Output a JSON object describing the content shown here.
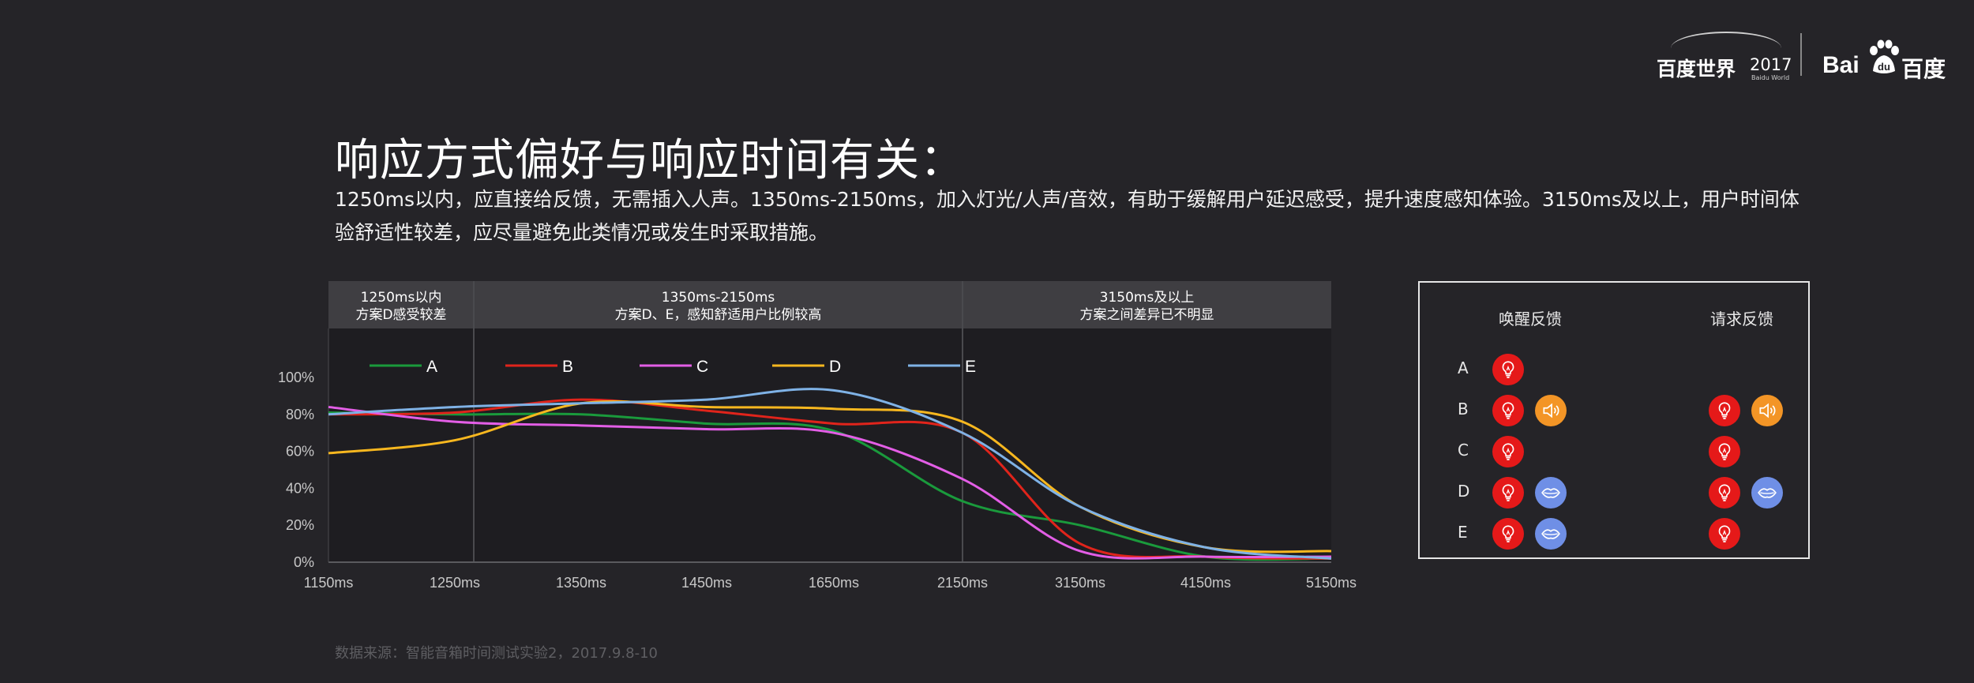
{
  "title": "响应方式偏好与响应时间有关：",
  "subtitle": "1250ms以内，应直接给反馈，无需插入人声。1350ms-2150ms，加入灯光/人声/音效，有助于缓解用户延迟感受，提升速度感知体验。3150ms及以上，用户时间体验舒适性较差，应尽量避免此类情况或发生时采取措施。",
  "source": "数据来源：智能音箱时间测试实验2，2017.9.8-10",
  "logo_baiduworld": {
    "text": "百度世界",
    "year": "2017",
    "sub": "Baidu World"
  },
  "logo_baidu": {
    "bai": "Bai",
    "cn": "百度"
  },
  "chart_data": {
    "type": "line",
    "title": "",
    "xlabel": "",
    "ylabel": "",
    "x": [
      "1150ms",
      "1250ms",
      "1350ms",
      "1450ms",
      "1650ms",
      "2150ms",
      "3150ms",
      "4150ms",
      "5150ms"
    ],
    "y_ticks": [
      "0%",
      "20%",
      "40%",
      "60%",
      "80%",
      "100%"
    ],
    "ylim": [
      0,
      100
    ],
    "grid": false,
    "legend_position": "top",
    "sections": [
      {
        "line1": "1250ms以内",
        "line2": "方案D感受较差"
      },
      {
        "line1": "1350ms-2150ms",
        "line2": "方案D、E，感知舒适用户比例较高"
      },
      {
        "line1": "3150ms及以上",
        "line2": "方案之间差异已不明显"
      }
    ],
    "series": [
      {
        "name": "A",
        "color": "#1a9a3c",
        "values": [
          81,
          80,
          80,
          75,
          71,
          33,
          20,
          3,
          2
        ]
      },
      {
        "name": "B",
        "color": "#e0241b",
        "values": [
          80,
          81,
          88,
          82,
          75,
          70,
          10,
          3,
          2
        ]
      },
      {
        "name": "C",
        "color": "#e35ee6",
        "values": [
          84,
          76,
          74,
          72,
          70,
          45,
          6,
          3,
          3
        ]
      },
      {
        "name": "D",
        "color": "#f7b71f",
        "values": [
          59,
          66,
          86,
          84,
          83,
          76,
          30,
          8,
          6
        ]
      },
      {
        "name": "E",
        "color": "#7fb2e6",
        "values": [
          80,
          84,
          86,
          88,
          93,
          70,
          30,
          8,
          2
        ]
      }
    ]
  },
  "feedback_panel": {
    "headers": [
      "唤醒反馈",
      "请求反馈"
    ],
    "rows": [
      {
        "label": "A",
        "wake": [
          "bulb-icon"
        ],
        "request": []
      },
      {
        "label": "B",
        "wake": [
          "bulb-icon",
          "speaker-icon"
        ],
        "request": [
          "bulb-icon",
          "speaker-icon"
        ]
      },
      {
        "label": "C",
        "wake": [
          "bulb-icon"
        ],
        "request": [
          "bulb-icon"
        ]
      },
      {
        "label": "D",
        "wake": [
          "bulb-icon",
          "lips-icon"
        ],
        "request": [
          "bulb-icon",
          "lips-icon"
        ]
      },
      {
        "label": "E",
        "wake": [
          "bulb-icon",
          "lips-icon"
        ],
        "request": [
          "bulb-icon"
        ]
      }
    ],
    "colors": {
      "bulb": "#e51919",
      "speaker": "#f39526",
      "lips": "#6f8fe6"
    }
  }
}
